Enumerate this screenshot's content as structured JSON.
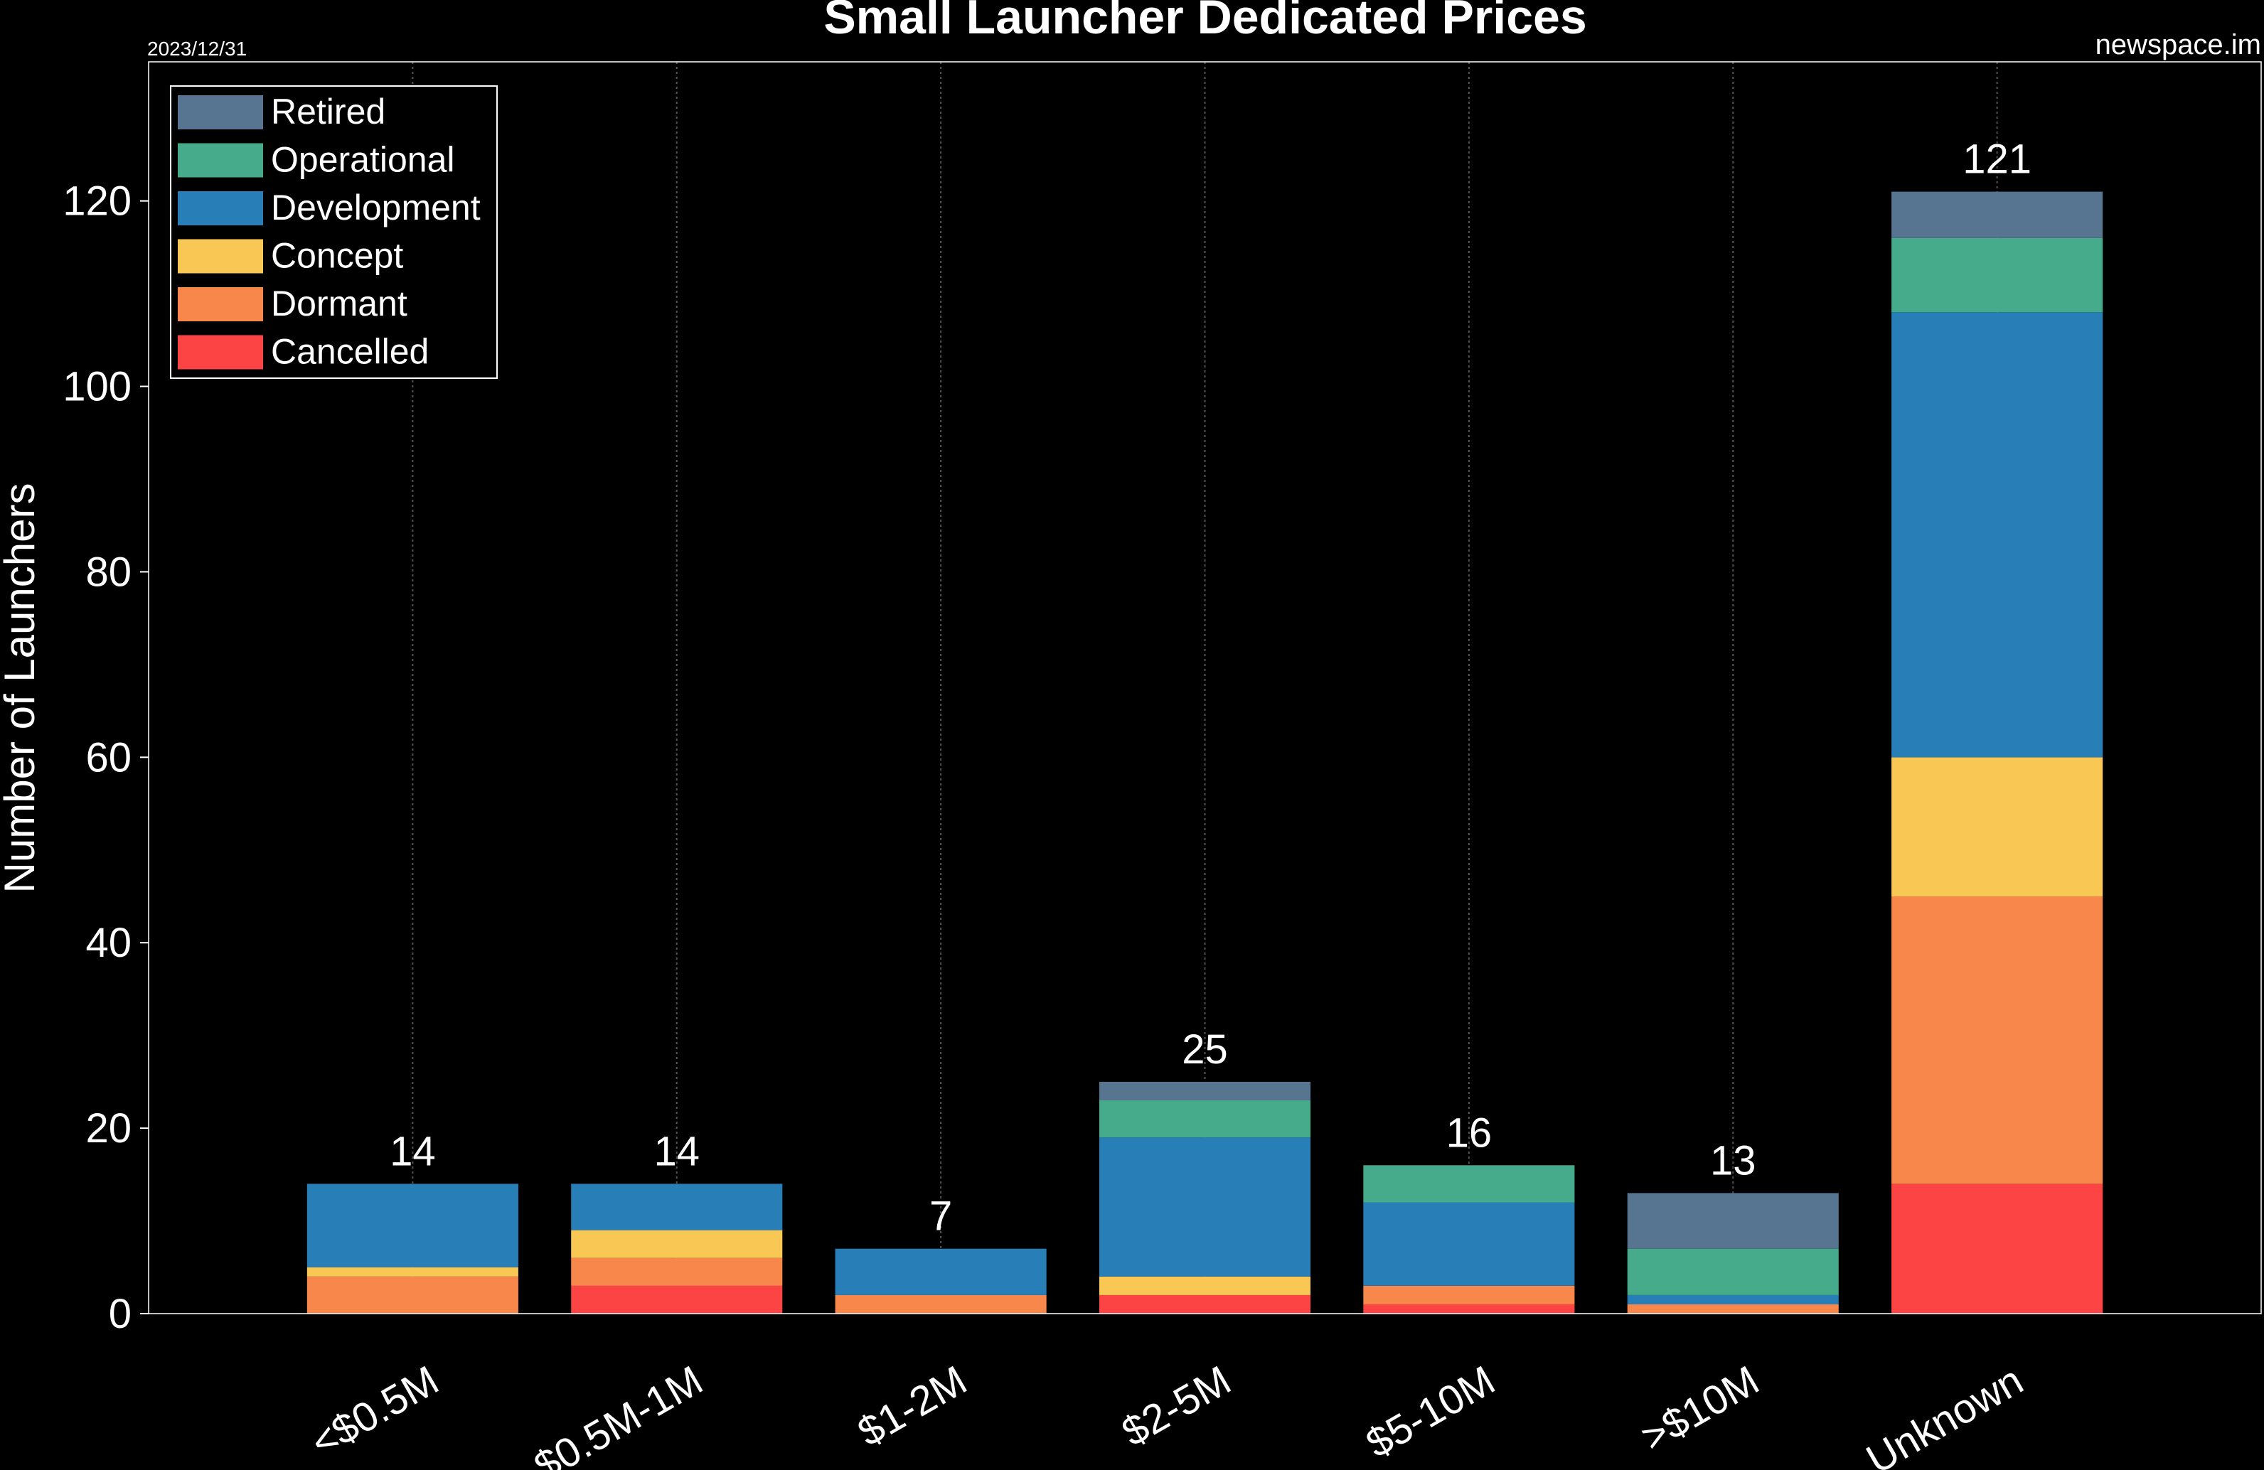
{
  "chart_data": {
    "type": "bar",
    "stacked": true,
    "title": "Small Launcher Dedicated Prices",
    "date": "2023/12/31",
    "source": "newspace.im",
    "xlabel": "",
    "ylabel": "Number of Launchers",
    "ylim": [
      0,
      135
    ],
    "yticks": [
      0,
      20,
      40,
      60,
      80,
      100,
      120
    ],
    "grid": "vertical dotted",
    "legend_position": "top-left",
    "categories": [
      "<$0.5M",
      "$0.5M-1M",
      "$1-2M",
      "$2-5M",
      "$5-10M",
      ">$10M",
      "Unknown"
    ],
    "totals": [
      14,
      14,
      7,
      25,
      16,
      13,
      121
    ],
    "series": [
      {
        "name": "Cancelled",
        "color": "#fc4444",
        "values": [
          0,
          3,
          0,
          2,
          1,
          0,
          14
        ]
      },
      {
        "name": "Dormant",
        "color": "#f8874c",
        "values": [
          4,
          3,
          2,
          0,
          2,
          1,
          31
        ]
      },
      {
        "name": "Concept",
        "color": "#f9c753",
        "values": [
          1,
          3,
          0,
          2,
          0,
          0,
          15
        ]
      },
      {
        "name": "Development",
        "color": "#287fb7",
        "values": [
          9,
          5,
          5,
          15,
          9,
          1,
          48
        ]
      },
      {
        "name": "Operational",
        "color": "#45ab8b",
        "values": [
          0,
          0,
          0,
          4,
          4,
          5,
          8
        ]
      },
      {
        "name": "Retired",
        "color": "#577591",
        "values": [
          0,
          0,
          0,
          2,
          0,
          6,
          5
        ]
      }
    ]
  }
}
